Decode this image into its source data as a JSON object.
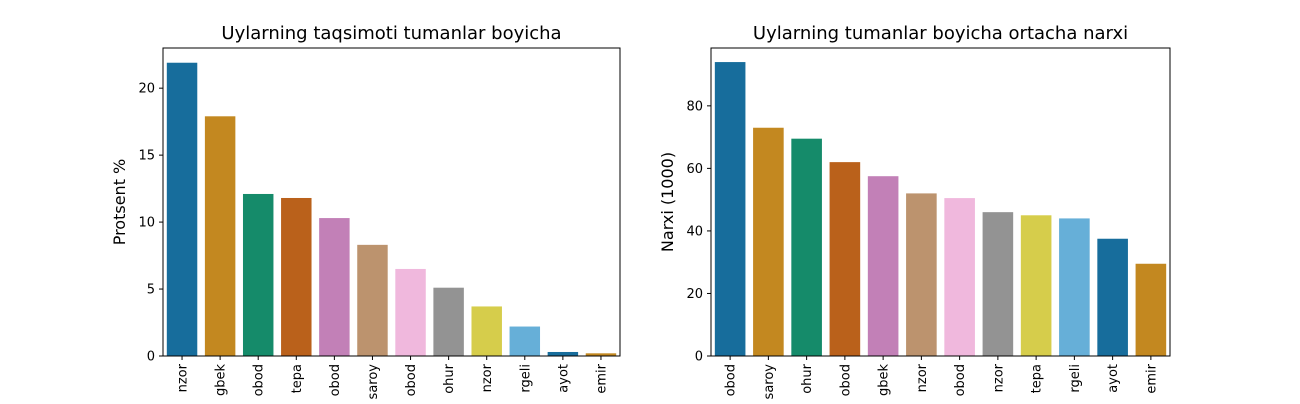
{
  "chart_data": [
    {
      "type": "bar",
      "title": "Uylarning taqsimoti tumanlar boyicha",
      "xlabel": "",
      "ylabel": "Protsent %",
      "ylim": [
        0,
        23
      ],
      "yticks": [
        0,
        5,
        10,
        15,
        20
      ],
      "categories": [
        "nzor",
        "gbek",
        "obod",
        "tepa",
        "obod",
        "saroy",
        "obod",
        "ohur",
        "nzor",
        "rgeli",
        "ayot",
        "emir"
      ],
      "values": [
        21.9,
        17.9,
        12.1,
        11.8,
        10.3,
        8.3,
        6.5,
        5.1,
        3.7,
        2.2,
        0.3,
        0.2
      ],
      "colors": [
        "#176d9c",
        "#c38820",
        "#158b6a",
        "#ba611b",
        "#c280b7",
        "#bc936e",
        "#f0b8dd",
        "#939393",
        "#d6cd4b",
        "#66afd8",
        "#176d9c",
        "#c38820"
      ]
    },
    {
      "type": "bar",
      "title": "Uylarning tumanlar boyicha ortacha narxi",
      "xlabel": "",
      "ylabel": "Narxi (1000)",
      "ylim": [
        0,
        98.5
      ],
      "yticks": [
        0,
        20,
        40,
        60,
        80
      ],
      "categories": [
        "obod",
        "saroy",
        "ohur",
        "obod",
        "gbek",
        "nzor",
        "obod",
        "nzor",
        "tepa",
        "rgeli",
        "ayot",
        "emir"
      ],
      "values": [
        94,
        73,
        69.5,
        62,
        57.5,
        52,
        50.5,
        46,
        45,
        44,
        37.5,
        29.5
      ],
      "colors": [
        "#176d9c",
        "#c38820",
        "#158b6a",
        "#ba611b",
        "#c280b7",
        "#bc936e",
        "#f0b8dd",
        "#939393",
        "#d6cd4b",
        "#66afd8",
        "#176d9c",
        "#c38820"
      ]
    }
  ]
}
